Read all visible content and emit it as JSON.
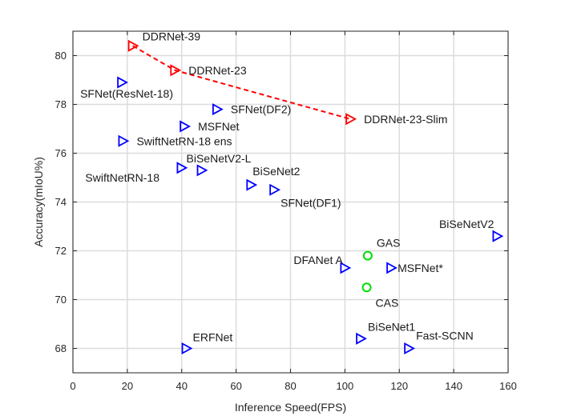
{
  "chart_data": {
    "type": "scatter",
    "xlabel": "Inference Speed(FPS)",
    "ylabel": "Accuracy(mIoU%)",
    "xlim": [
      0,
      160
    ],
    "ylim": [
      67,
      81
    ],
    "xticks": [
      0,
      20,
      40,
      60,
      80,
      100,
      120,
      140,
      160
    ],
    "yticks": [
      68,
      70,
      72,
      74,
      76,
      78,
      80
    ],
    "grid": true,
    "colors": {
      "triangle_blue": "#0000ff",
      "triangle_red": "#ff0000",
      "circle_green": "#00dd00",
      "dashed_line": "#ff0000"
    },
    "points": [
      {
        "label": "DDRNet-39",
        "x": 22,
        "y": 80.4,
        "marker": "triangle",
        "color": "#ff0000"
      },
      {
        "label": "DDRNet-23",
        "x": 37.5,
        "y": 79.4,
        "marker": "triangle",
        "color": "#ff0000"
      },
      {
        "label": "DDRNet-23-Slim",
        "x": 102,
        "y": 77.4,
        "marker": "triangle",
        "color": "#ff0000"
      },
      {
        "label": "SFNet(ResNet-18)",
        "x": 18,
        "y": 78.9,
        "marker": "triangle",
        "color": "#0000ff"
      },
      {
        "label": "SFNet(DF2)",
        "x": 53,
        "y": 77.8,
        "marker": "triangle",
        "color": "#0000ff"
      },
      {
        "label": "MSFNet",
        "x": 41,
        "y": 77.1,
        "marker": "triangle",
        "color": "#0000ff"
      },
      {
        "label": "SwiftNetRN-18 ens",
        "x": 18.4,
        "y": 76.5,
        "marker": "triangle",
        "color": "#0000ff"
      },
      {
        "label": "SwiftNetRN-18",
        "x": 39.9,
        "y": 75.4,
        "marker": "triangle",
        "color": "#0000ff"
      },
      {
        "label": "BiSeNetV2-L",
        "x": 47.3,
        "y": 75.3,
        "marker": "triangle",
        "color": "#0000ff"
      },
      {
        "label": "BiSeNet2",
        "x": 65.5,
        "y": 74.7,
        "marker": "triangle",
        "color": "#0000ff"
      },
      {
        "label": "SFNet(DF1)",
        "x": 74,
        "y": 74.5,
        "marker": "triangle",
        "color": "#0000ff"
      },
      {
        "label": "BiSeNetV2",
        "x": 156,
        "y": 72.6,
        "marker": "triangle",
        "color": "#0000ff"
      },
      {
        "label": "GAS",
        "x": 108.4,
        "y": 71.8,
        "marker": "circle",
        "color": "#00dd00"
      },
      {
        "label": "DFANet A",
        "x": 100,
        "y": 71.3,
        "marker": "triangle",
        "color": "#0000ff"
      },
      {
        "label": "MSFNet*",
        "x": 117,
        "y": 71.3,
        "marker": "triangle",
        "color": "#0000ff"
      },
      {
        "label": "CAS",
        "x": 108,
        "y": 70.5,
        "marker": "circle",
        "color": "#00dd00"
      },
      {
        "label": "ERFNet",
        "x": 41.7,
        "y": 68,
        "marker": "triangle",
        "color": "#0000ff"
      },
      {
        "label": "BiSeNet1",
        "x": 105.8,
        "y": 68.4,
        "marker": "triangle",
        "color": "#0000ff"
      },
      {
        "label": "Fast-SCNN",
        "x": 123.5,
        "y": 68,
        "marker": "triangle",
        "color": "#0000ff"
      }
    ],
    "lines": [
      {
        "style": "dashed",
        "color": "#ff0000",
        "points": [
          [
            22,
            80.4
          ],
          [
            37.5,
            79.4
          ],
          [
            102,
            77.4
          ]
        ]
      }
    ]
  }
}
